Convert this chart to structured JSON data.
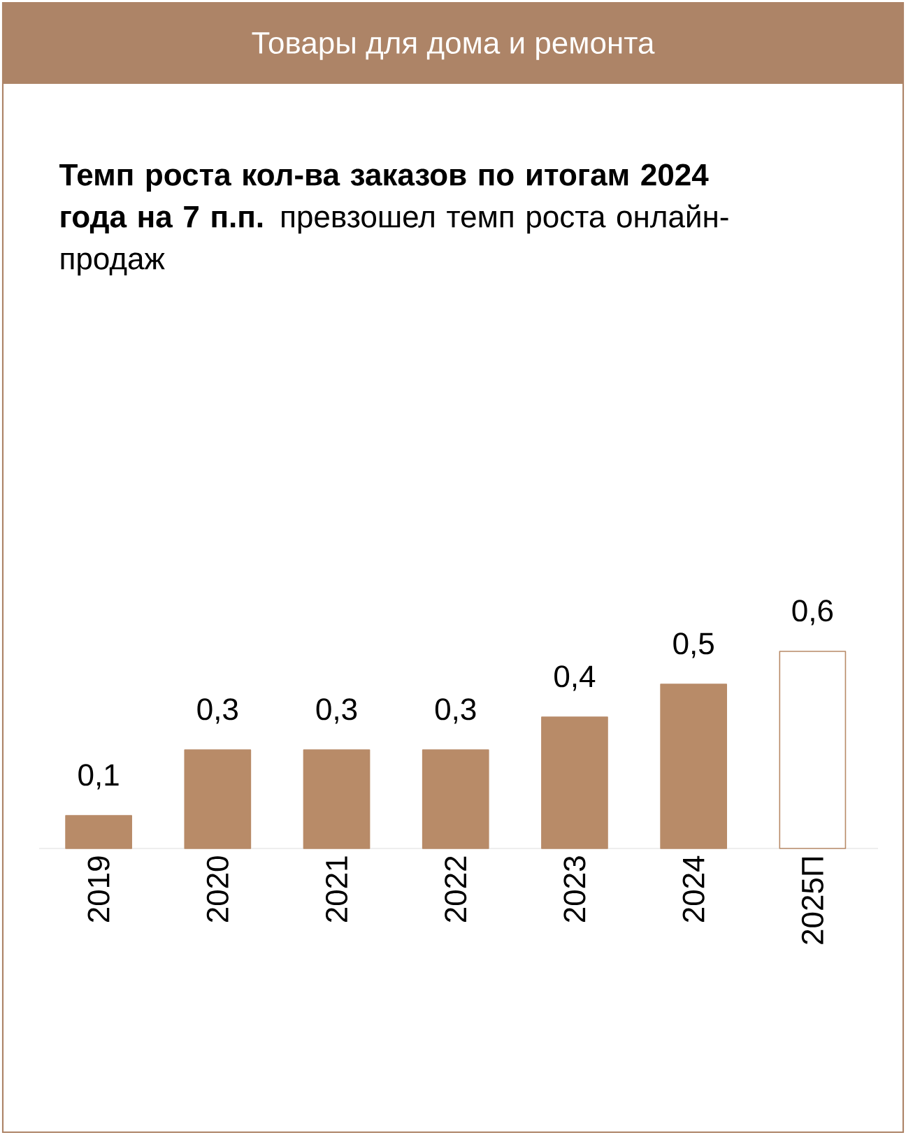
{
  "chart_data": {
    "type": "bar",
    "title": "Товары для дома и ремонта",
    "subtitle": "**Темп роста кол-ва заказов по итогам 2024 года на 7 п.п.** превзошел темп роста онлайн-продаж",
    "categories": [
      "2019",
      "2020",
      "2021",
      "2022",
      "2023",
      "2024",
      "2025П"
    ],
    "values": [
      0.1,
      0.3,
      0.3,
      0.3,
      0.4,
      0.5,
      0.6
    ],
    "colors": [
      "#b88b68",
      "#b88b68",
      "#b88b68",
      "#b88b68",
      "#b88b68",
      "#b88b68",
      "#ffffff"
    ],
    "value_labels": [
      "0,1",
      "0,3",
      "0,3",
      "0,3",
      "0,4",
      "0,5",
      "0,6"
    ]
  }
}
